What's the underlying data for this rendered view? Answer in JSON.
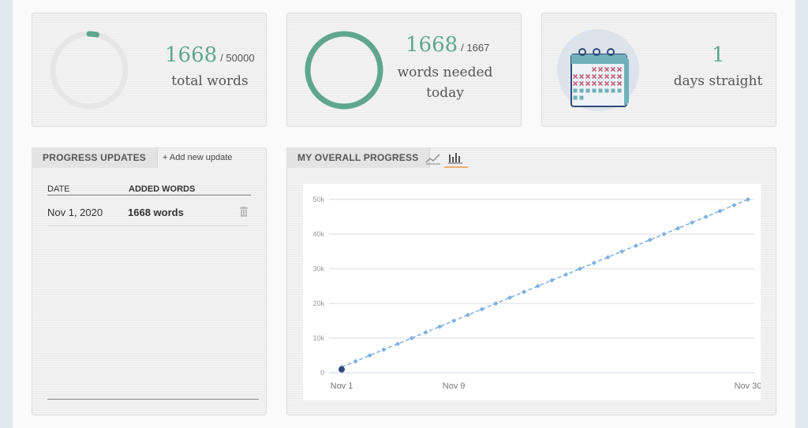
{
  "stats": {
    "total": {
      "value": "1668",
      "of": "/ 50000",
      "label": "total words",
      "progress": 0.0334
    },
    "today": {
      "value": "1668",
      "of": "/ 1667",
      "label_line1": "words needed",
      "label_line2": "today",
      "progress": 1.0
    },
    "streak": {
      "value": "1",
      "label": "days straight"
    }
  },
  "updates": {
    "tab_label": "PROGRESS UPDATES",
    "add_label": "+ Add new update",
    "columns": [
      "DATE",
      "ADDED WORDS"
    ],
    "rows": [
      {
        "date": "Nov 1, 2020",
        "words": "1668 words"
      }
    ]
  },
  "progress": {
    "tab_label": "MY OVERALL PROGRESS",
    "icons": [
      "line-chart-icon",
      "bar-chart-icon"
    ],
    "active_icon": "bar-chart-icon"
  },
  "colors": {
    "accent": "#5fa68f",
    "ring_bg": "#e6e6e6",
    "target_line": "#7eb0e0",
    "actual_point": "#2f4b7c",
    "tab_underline": "#f0ad6b"
  },
  "chart_data": {
    "type": "line",
    "x_ticks": [
      "Nov 1",
      "Nov 9",
      "Nov 30"
    ],
    "y_ticks": [
      "0",
      "10k",
      "20k",
      "30k",
      "40k",
      "50k"
    ],
    "ylim": [
      0,
      50000
    ],
    "xlim": [
      1,
      30
    ],
    "series": [
      {
        "style": "dashed",
        "x": [
          1,
          2,
          3,
          4,
          5,
          6,
          7,
          8,
          9,
          10,
          11,
          12,
          13,
          14,
          15,
          16,
          17,
          18,
          19,
          20,
          21,
          22,
          23,
          24,
          25,
          26,
          27,
          28,
          29,
          30
        ],
        "values": [
          1667,
          3333,
          5000,
          6667,
          8333,
          10000,
          11667,
          13333,
          15000,
          16667,
          18333,
          20000,
          21667,
          23333,
          25000,
          26667,
          28333,
          30000,
          31667,
          33333,
          35000,
          36667,
          38333,
          40000,
          41667,
          43333,
          45000,
          46667,
          48333,
          50000
        ]
      },
      {
        "x": [
          1
        ],
        "values": [
          1668
        ]
      }
    ]
  }
}
